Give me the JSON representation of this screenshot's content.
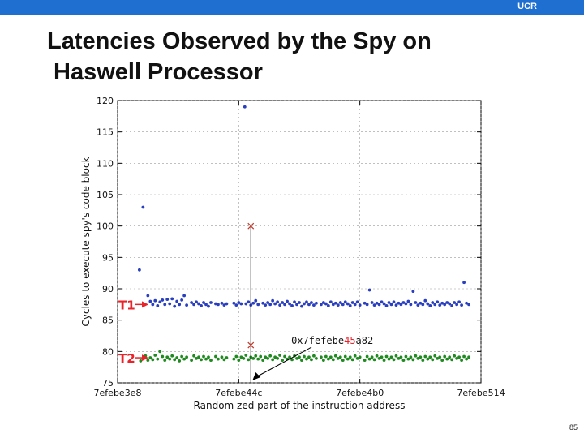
{
  "header": {
    "brand": "UCR"
  },
  "slide": {
    "title_line1": "Latencies Observed by the Spy on",
    "title_line2": "Haswell Processor",
    "page_number": "85"
  },
  "chart_data": {
    "type": "scatter",
    "title": "",
    "xlabel": "Random zed part of the instruction address",
    "ylabel": "Cycles to execute spy's code block",
    "xlim": [
      0,
      300
    ],
    "ylim": [
      75,
      120
    ],
    "yticks": [
      75,
      80,
      85,
      90,
      95,
      100,
      105,
      110,
      115,
      120
    ],
    "xticks": [
      {
        "value": 0,
        "label": "7efebe3e8"
      },
      {
        "value": 100,
        "label": "7efebe44c"
      },
      {
        "value": 200,
        "label": "7efebe4b0"
      },
      {
        "value": 300,
        "label": "7efebe514"
      }
    ],
    "grid": true,
    "colors": {
      "t1": "#2a3fbf",
      "t2": "#1f8a1f",
      "marker": "#c0392b",
      "label": "#e8232a"
    },
    "series": [
      {
        "name": "T1",
        "color": "#2a3fbf",
        "points": [
          [
            18,
            93
          ],
          [
            21,
            103
          ],
          [
            25,
            88.9
          ],
          [
            27,
            88
          ],
          [
            29,
            87.5
          ],
          [
            31,
            88.1
          ],
          [
            33,
            87.3
          ],
          [
            35,
            87.9
          ],
          [
            37,
            88.2
          ],
          [
            39,
            87.5
          ],
          [
            41,
            88.3
          ],
          [
            43,
            87.6
          ],
          [
            45,
            88.4
          ],
          [
            47,
            87.2
          ],
          [
            49,
            88
          ],
          [
            51,
            87.5
          ],
          [
            53,
            88.2
          ],
          [
            55,
            88.9
          ],
          [
            57,
            87.4
          ],
          [
            61,
            87.8
          ],
          [
            63,
            87.5
          ],
          [
            65,
            87.9
          ],
          [
            67,
            87.6
          ],
          [
            69,
            87.3
          ],
          [
            71,
            87.8
          ],
          [
            73,
            87.5
          ],
          [
            75,
            87.2
          ],
          [
            77,
            87.8
          ],
          [
            81,
            87.6
          ],
          [
            83,
            87.5
          ],
          [
            86,
            87.7
          ],
          [
            88,
            87.4
          ],
          [
            90,
            87.6
          ],
          [
            96,
            87.7
          ],
          [
            98,
            87.4
          ],
          [
            100,
            87.8
          ],
          [
            102,
            87.6
          ],
          [
            105,
            119
          ],
          [
            106,
            87.6
          ],
          [
            108,
            87.9
          ],
          [
            110,
            87.4
          ],
          [
            112,
            87.7
          ],
          [
            114,
            88.1
          ],
          [
            116,
            87.5
          ],
          [
            120,
            87.7
          ],
          [
            122,
            87.4
          ],
          [
            124,
            87.8
          ],
          [
            126,
            87.5
          ],
          [
            128,
            88.1
          ],
          [
            130,
            87.6
          ],
          [
            132,
            87.9
          ],
          [
            134,
            87.4
          ],
          [
            136,
            87.8
          ],
          [
            138,
            87.5
          ],
          [
            140,
            88
          ],
          [
            142,
            87.6
          ],
          [
            144,
            87.3
          ],
          [
            146,
            87.9
          ],
          [
            148,
            87.5
          ],
          [
            150,
            87.8
          ],
          [
            152,
            87.2
          ],
          [
            154,
            87.6
          ],
          [
            156,
            87.9
          ],
          [
            158,
            87.5
          ],
          [
            160,
            87.8
          ],
          [
            162,
            87.4
          ],
          [
            164,
            87.7
          ],
          [
            168,
            87.5
          ],
          [
            170,
            87.8
          ],
          [
            172,
            87.6
          ],
          [
            174,
            87.3
          ],
          [
            176,
            87.9
          ],
          [
            178,
            87.5
          ],
          [
            180,
            87.7
          ],
          [
            182,
            87.4
          ],
          [
            184,
            87.8
          ],
          [
            186,
            87.5
          ],
          [
            188,
            87.9
          ],
          [
            190,
            87.6
          ],
          [
            192,
            87.3
          ],
          [
            194,
            87.8
          ],
          [
            196,
            87.5
          ],
          [
            198,
            87.9
          ],
          [
            200,
            87.4
          ],
          [
            204,
            87.7
          ],
          [
            206,
            87.5
          ],
          [
            208,
            89.8
          ],
          [
            210,
            87.8
          ],
          [
            212,
            87.4
          ],
          [
            214,
            87.7
          ],
          [
            216,
            87.5
          ],
          [
            218,
            87.9
          ],
          [
            220,
            87.6
          ],
          [
            222,
            87.3
          ],
          [
            224,
            87.8
          ],
          [
            226,
            87.5
          ],
          [
            228,
            87.9
          ],
          [
            230,
            87.4
          ],
          [
            232,
            87.7
          ],
          [
            234,
            87.5
          ],
          [
            236,
            87.8
          ],
          [
            238,
            87.6
          ],
          [
            240,
            88
          ],
          [
            242,
            87.5
          ],
          [
            244,
            89.6
          ],
          [
            246,
            87.8
          ],
          [
            248,
            87.4
          ],
          [
            250,
            87.7
          ],
          [
            252,
            87.5
          ],
          [
            254,
            88.1
          ],
          [
            256,
            87.6
          ],
          [
            258,
            87.3
          ],
          [
            260,
            87.8
          ],
          [
            262,
            87.5
          ],
          [
            264,
            87.9
          ],
          [
            266,
            87.4
          ],
          [
            268,
            87.7
          ],
          [
            270,
            87.5
          ],
          [
            272,
            87.8
          ],
          [
            274,
            87.6
          ],
          [
            276,
            87.3
          ],
          [
            278,
            87.8
          ],
          [
            280,
            87.5
          ],
          [
            282,
            87.9
          ],
          [
            284,
            87.4
          ],
          [
            286,
            91
          ],
          [
            288,
            87.7
          ],
          [
            290,
            87.5
          ]
        ]
      },
      {
        "name": "T2",
        "color": "#1f8a1f",
        "points": [
          [
            19,
            78.5
          ],
          [
            21,
            78.9
          ],
          [
            23,
            79.3
          ],
          [
            25,
            78.6
          ],
          [
            27,
            79
          ],
          [
            29,
            78.7
          ],
          [
            31,
            79.4
          ],
          [
            33,
            78.8
          ],
          [
            35,
            80
          ],
          [
            37,
            79.2
          ],
          [
            39,
            78.6
          ],
          [
            41,
            79.1
          ],
          [
            43,
            78.8
          ],
          [
            45,
            79.3
          ],
          [
            47,
            78.7
          ],
          [
            49,
            79
          ],
          [
            51,
            78.5
          ],
          [
            53,
            79.2
          ],
          [
            55,
            78.8
          ],
          [
            57,
            79.1
          ],
          [
            61,
            78.6
          ],
          [
            63,
            79.3
          ],
          [
            65,
            78.9
          ],
          [
            67,
            79.1
          ],
          [
            69,
            78.7
          ],
          [
            71,
            79.2
          ],
          [
            73,
            78.8
          ],
          [
            75,
            79.1
          ],
          [
            77,
            78.6
          ],
          [
            81,
            79.2
          ],
          [
            83,
            78.8
          ],
          [
            86,
            79.1
          ],
          [
            88,
            78.7
          ],
          [
            90,
            79
          ],
          [
            96,
            78.8
          ],
          [
            98,
            79.2
          ],
          [
            100,
            78.6
          ],
          [
            102,
            79.1
          ],
          [
            104,
            78.9
          ],
          [
            106,
            79.4
          ],
          [
            108,
            78.7
          ],
          [
            110,
            79.1
          ],
          [
            112,
            78.9
          ],
          [
            114,
            79.3
          ],
          [
            116,
            78.8
          ],
          [
            118,
            79.2
          ],
          [
            120,
            78.6
          ],
          [
            122,
            79.1
          ],
          [
            124,
            78.9
          ],
          [
            126,
            79.3
          ],
          [
            128,
            78.7
          ],
          [
            130,
            79.1
          ],
          [
            132,
            78.9
          ],
          [
            134,
            79.4
          ],
          [
            136,
            78.6
          ],
          [
            138,
            79.2
          ],
          [
            140,
            78.8
          ],
          [
            142,
            79.1
          ],
          [
            144,
            78.7
          ],
          [
            146,
            79.3
          ],
          [
            148,
            78.9
          ],
          [
            150,
            79.1
          ],
          [
            152,
            78.6
          ],
          [
            154,
            79.2
          ],
          [
            156,
            78.8
          ],
          [
            158,
            79.1
          ],
          [
            160,
            78.7
          ],
          [
            162,
            79.3
          ],
          [
            164,
            78.9
          ],
          [
            168,
            79.1
          ],
          [
            170,
            78.6
          ],
          [
            172,
            79.2
          ],
          [
            174,
            78.8
          ],
          [
            176,
            79.1
          ],
          [
            178,
            78.7
          ],
          [
            180,
            79.3
          ],
          [
            182,
            78.9
          ],
          [
            184,
            79.1
          ],
          [
            186,
            78.6
          ],
          [
            188,
            79.2
          ],
          [
            190,
            78.8
          ],
          [
            192,
            79.1
          ],
          [
            194,
            78.7
          ],
          [
            196,
            79.3
          ],
          [
            198,
            78.9
          ],
          [
            200,
            79.1
          ],
          [
            204,
            78.6
          ],
          [
            206,
            79.2
          ],
          [
            208,
            78.8
          ],
          [
            210,
            79.1
          ],
          [
            212,
            78.7
          ],
          [
            214,
            79.3
          ],
          [
            216,
            78.9
          ],
          [
            218,
            79.1
          ],
          [
            220,
            78.6
          ],
          [
            222,
            79.2
          ],
          [
            224,
            78.8
          ],
          [
            226,
            79.1
          ],
          [
            228,
            78.7
          ],
          [
            230,
            79.3
          ],
          [
            232,
            78.9
          ],
          [
            234,
            79.1
          ],
          [
            236,
            78.6
          ],
          [
            238,
            79.2
          ],
          [
            240,
            78.8
          ],
          [
            242,
            79.1
          ],
          [
            244,
            78.7
          ],
          [
            246,
            79.3
          ],
          [
            248,
            78.9
          ],
          [
            250,
            79.1
          ],
          [
            252,
            78.6
          ],
          [
            254,
            79.2
          ],
          [
            256,
            78.8
          ],
          [
            258,
            79.1
          ],
          [
            260,
            78.7
          ],
          [
            262,
            79.3
          ],
          [
            264,
            78.9
          ],
          [
            266,
            79.1
          ],
          [
            268,
            78.6
          ],
          [
            270,
            79.2
          ],
          [
            272,
            78.8
          ],
          [
            274,
            79.1
          ],
          [
            276,
            78.7
          ],
          [
            278,
            79.3
          ],
          [
            280,
            78.9
          ],
          [
            282,
            79.1
          ],
          [
            284,
            78.6
          ],
          [
            286,
            79.2
          ],
          [
            288,
            78.8
          ],
          [
            290,
            79.1
          ]
        ]
      }
    ],
    "markers": [
      {
        "x": 110,
        "y": 100,
        "symbol": "x"
      },
      {
        "x": 110,
        "y": 81,
        "symbol": "x"
      }
    ],
    "vline": {
      "x": 110,
      "from": 75,
      "to": 100
    },
    "annotations": [
      {
        "text_prefix": "0x7fefebe",
        "text_highlight": "45",
        "text_suffix": "a82",
        "x": 140,
        "y": 81.2,
        "highlight_color": "#e8232a"
      },
      {
        "text": "T1",
        "series": "T1",
        "y": 87.5
      },
      {
        "text": "T2",
        "series": "T2",
        "y": 79
      }
    ]
  }
}
